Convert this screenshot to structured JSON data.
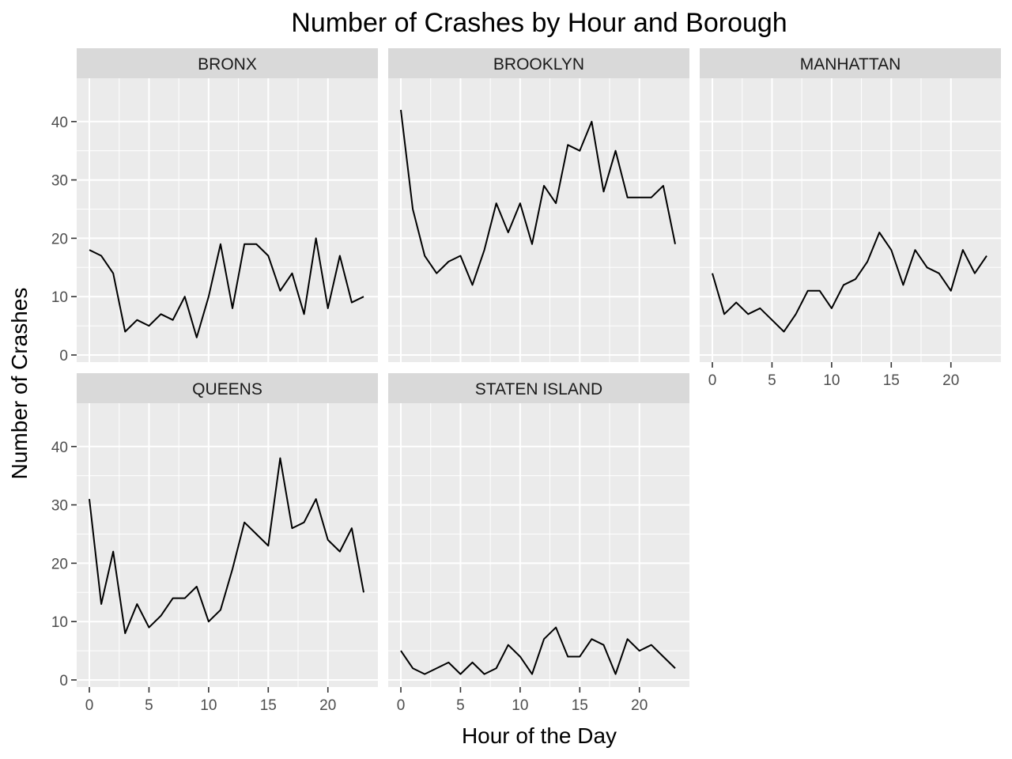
{
  "chart_data": {
    "type": "line",
    "layout": "faceted",
    "title": "Number of Crashes by Hour and Borough",
    "xlabel": "Hour of the Day",
    "ylabel": "Number of Crashes",
    "xlim": [
      0,
      23
    ],
    "ylim": [
      0,
      42
    ],
    "x_ticks": [
      0,
      5,
      10,
      15,
      20
    ],
    "y_ticks": [
      0,
      10,
      20,
      30,
      40
    ],
    "x_tick_labels": [
      "0",
      "5",
      "10",
      "15",
      "20"
    ],
    "y_tick_labels": [
      "0",
      "10",
      "20",
      "30",
      "40"
    ],
    "grid": true,
    "line_color": "#000000",
    "panel_background": "#ebebeb",
    "strip_background": "#d9d9d9",
    "x": [
      0,
      1,
      2,
      3,
      4,
      5,
      6,
      7,
      8,
      9,
      10,
      11,
      12,
      13,
      14,
      15,
      16,
      17,
      18,
      19,
      20,
      21,
      22,
      23
    ],
    "facets": [
      {
        "name": "BRONX",
        "values": [
          18,
          17,
          14,
          4,
          6,
          5,
          7,
          6,
          10,
          3,
          10,
          19,
          8,
          19,
          19,
          17,
          11,
          14,
          7,
          20,
          8,
          17,
          9,
          10
        ]
      },
      {
        "name": "BROOKLYN",
        "values": [
          42,
          25,
          17,
          14,
          16,
          17,
          12,
          18,
          26,
          21,
          26,
          19,
          29,
          26,
          36,
          35,
          40,
          28,
          35,
          27,
          27,
          27,
          29,
          19
        ]
      },
      {
        "name": "MANHATTAN",
        "values": [
          14,
          7,
          9,
          7,
          8,
          6,
          4,
          7,
          11,
          11,
          8,
          12,
          13,
          16,
          21,
          18,
          12,
          18,
          15,
          14,
          11,
          18,
          14,
          17
        ]
      },
      {
        "name": "QUEENS",
        "values": [
          31,
          13,
          22,
          8,
          13,
          9,
          11,
          14,
          14,
          16,
          10,
          12,
          19,
          27,
          25,
          23,
          38,
          26,
          27,
          31,
          24,
          22,
          26,
          15
        ]
      },
      {
        "name": "STATEN ISLAND",
        "values": [
          5,
          2,
          1,
          2,
          3,
          1,
          3,
          1,
          2,
          6,
          4,
          1,
          7,
          9,
          4,
          4,
          7,
          6,
          1,
          7,
          5,
          6,
          4,
          2
        ]
      }
    ]
  }
}
